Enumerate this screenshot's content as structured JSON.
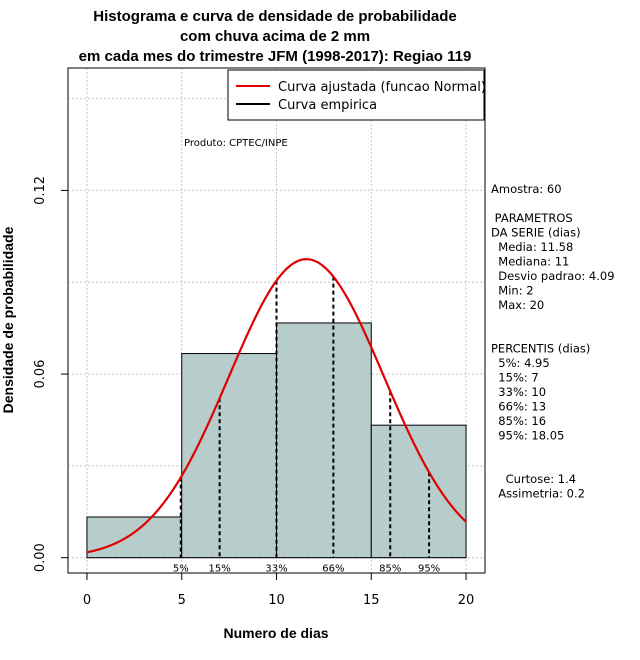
{
  "chart_data": {
    "type": "bar",
    "title_lines": [
      "Histograma e curva de densidade de probabilidade",
      "com chuva acima de 2 mm",
      "em cada mes do trimestre JFM (1998-2017): Regiao 119"
    ],
    "xlabel": "Numero de dias",
    "ylabel": "Densidade de probabilidade",
    "xlim": [
      -1,
      21
    ],
    "ylim": [
      -0.005,
      0.16
    ],
    "x_ticks": [
      0,
      5,
      10,
      15,
      20
    ],
    "y_ticks": [
      0.0,
      0.06,
      0.12
    ],
    "y_tick_labels": [
      "0.00",
      "0.06",
      "0.12"
    ],
    "histogram": [
      {
        "x0": 0,
        "x1": 5,
        "density": 0.0133
      },
      {
        "x0": 5,
        "x1": 10,
        "density": 0.0667
      },
      {
        "x0": 10,
        "x1": 15,
        "density": 0.0767
      },
      {
        "x0": 15,
        "x1": 20,
        "density": 0.0433
      }
    ],
    "normal_curve": {
      "mean": 11.58,
      "sd": 4.09,
      "x_range": [
        0,
        20
      ]
    },
    "percentile_lines": [
      {
        "label": "5%",
        "x": 4.95
      },
      {
        "label": "15%",
        "x": 7
      },
      {
        "label": "33%",
        "x": 10
      },
      {
        "label": "66%",
        "x": 13
      },
      {
        "label": "85%",
        "x": 16
      },
      {
        "label": "95%",
        "x": 18.05
      }
    ],
    "legend": {
      "position": "top-right",
      "entries": [
        {
          "label": "Curva ajustada (funcao Normal)",
          "color": "#e00000"
        },
        {
          "label": "Curva empirica",
          "color": "#000000"
        }
      ]
    },
    "grid": true,
    "colors": {
      "bars": "#b7cdcb",
      "curve": "#e00000",
      "grid": "#c8c8c8"
    },
    "annotation": "Produto: CPTEC/INPE",
    "stats_panel": [
      "Amostra: 60",
      "",
      " PARAMETROS",
      "DA SERIE (dias)",
      "  Media: 11.58",
      "  Mediana: 11",
      "  Desvio padrao: 4.09",
      "  Min: 2",
      "  Max: 20",
      "",
      "",
      "PERCENTIS (dias)",
      "  5%: 4.95",
      "  15%: 7",
      "  33%: 10",
      "  66%: 13",
      "  85%: 16",
      "  95%: 18.05",
      "",
      "",
      "    Curtose: 1.4",
      "  Assimetria: 0.2"
    ]
  }
}
